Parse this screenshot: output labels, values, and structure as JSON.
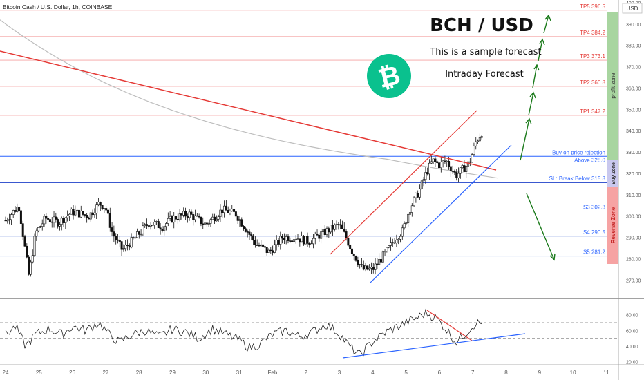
{
  "header": {
    "symbol_line": "Bitcoin Cash / U.S. Dollar, 1h, COINBASE",
    "currency_badge": "USD"
  },
  "forecast_text": {
    "title": "BCH / USD",
    "subtitle_1": "This is a sample forecast",
    "subtitle_2": "Intraday Forecast",
    "logo_icon": "bitcoin-cash-icon",
    "logo_color": "#0ac18e"
  },
  "colors": {
    "tp_line": "#f4a0a0",
    "tp_text": "#e53935",
    "support_line": "#9fb3e6",
    "support_text": "#2962ff",
    "buy_line": "#2962ff",
    "sl_line": "#1e40c8",
    "trendline_red": "#e53935",
    "trendline_blue": "#2962ff",
    "ma_gray": "#bdbdbd",
    "arrow_green": "#1b7a1b",
    "profit_zone": "#a8d5a0",
    "buy_zone": "#c9c8ee",
    "reverse_zone": "#f6a3a3",
    "candle_up": "#ffffff",
    "candle_down": "#111111"
  },
  "zones": {
    "profit": "profit zone",
    "buy": "Buy Zone",
    "reverse": "Reverse Zone"
  },
  "chart_data": {
    "type": "candlestick",
    "ylim": [
      262,
      400
    ],
    "y_ticks": [
      270,
      280,
      290,
      300,
      310,
      320,
      330,
      340,
      350,
      360,
      370,
      380,
      390,
      400
    ],
    "y_tick_labels": [
      "270.00",
      "280.00",
      "290.00",
      "300.00",
      "310.00",
      "320.00",
      "330.00",
      "340.00",
      "350.00",
      "360.00",
      "370.00",
      "380.00",
      "390.00",
      "400.00"
    ],
    "x_labels": [
      "24",
      "25",
      "26",
      "27",
      "28",
      "29",
      "30",
      "31",
      "Feb",
      "2",
      "3",
      "4",
      "5",
      "6",
      "7",
      "8",
      "9",
      "10",
      "11"
    ],
    "price_levels": [
      {
        "label": "TP5 396.5",
        "value": 396.5,
        "kind": "tp"
      },
      {
        "label": "TP4 384.2",
        "value": 384.2,
        "kind": "tp"
      },
      {
        "label": "TP3 373.1",
        "value": 373.1,
        "kind": "tp"
      },
      {
        "label": "TP2 360.8",
        "value": 360.8,
        "kind": "tp"
      },
      {
        "label": "TP1 347.2",
        "value": 347.2,
        "kind": "tp"
      },
      {
        "label": "Buy on price rejection",
        "value": 328.0,
        "kind": "buy_note"
      },
      {
        "label": "Above 328.0",
        "value": 328.0,
        "kind": "buy"
      },
      {
        "label": "SL: Break Below 315.8",
        "value": 315.8,
        "kind": "sl"
      },
      {
        "label": "S3 302.3",
        "value": 302.3,
        "kind": "support"
      },
      {
        "label": "S4 290.5",
        "value": 290.5,
        "kind": "support"
      },
      {
        "label": "S5 281.2",
        "value": 281.2,
        "kind": "support"
      }
    ],
    "price_path": [
      [
        24.0,
        298
      ],
      [
        24.4,
        305
      ],
      [
        24.7,
        272
      ],
      [
        24.9,
        292
      ],
      [
        25.2,
        299
      ],
      [
        25.6,
        297
      ],
      [
        26.0,
        302
      ],
      [
        26.5,
        300
      ],
      [
        26.8,
        306
      ],
      [
        27.0,
        304
      ],
      [
        27.2,
        292
      ],
      [
        27.5,
        284
      ],
      [
        27.9,
        290
      ],
      [
        28.3,
        297
      ],
      [
        28.7,
        295
      ],
      [
        29.0,
        299
      ],
      [
        29.5,
        301
      ],
      [
        30.0,
        296
      ],
      [
        30.5,
        303
      ],
      [
        30.9,
        301
      ],
      [
        31.2,
        294
      ],
      [
        31.5,
        287
      ],
      [
        31.9,
        283
      ],
      [
        32.3,
        290
      ],
      [
        32.7,
        290
      ],
      [
        33.1,
        288
      ],
      [
        33.5,
        292
      ],
      [
        34.0,
        296
      ],
      [
        34.2,
        290
      ],
      [
        34.4,
        283
      ],
      [
        34.7,
        275
      ],
      [
        35.0,
        275
      ],
      [
        35.4,
        283
      ],
      [
        35.7,
        290
      ],
      [
        35.9,
        293
      ],
      [
        36.1,
        303
      ],
      [
        36.4,
        312
      ],
      [
        36.6,
        320
      ],
      [
        36.8,
        326
      ],
      [
        37.0,
        324
      ],
      [
        37.2,
        326
      ],
      [
        37.5,
        319
      ],
      [
        37.7,
        322
      ],
      [
        37.9,
        325
      ],
      [
        38.1,
        335
      ],
      [
        38.3,
        340
      ]
    ],
    "rsi": {
      "ylim": [
        18,
        92
      ],
      "y_ticks": [
        20,
        40,
        60,
        80
      ],
      "y_tick_labels": [
        "20.00",
        "40.00",
        "60.00",
        "80.00"
      ],
      "levels": [
        30,
        50,
        70
      ],
      "path": [
        [
          24.0,
          55
        ],
        [
          24.3,
          65
        ],
        [
          24.6,
          40
        ],
        [
          24.9,
          55
        ],
        [
          25.3,
          62
        ],
        [
          25.7,
          55
        ],
        [
          26.0,
          65
        ],
        [
          26.4,
          60
        ],
        [
          26.8,
          70
        ],
        [
          27.1,
          55
        ],
        [
          27.4,
          45
        ],
        [
          27.8,
          55
        ],
        [
          28.2,
          60
        ],
        [
          28.6,
          52
        ],
        [
          29.0,
          62
        ],
        [
          29.4,
          58
        ],
        [
          29.8,
          50
        ],
        [
          30.2,
          62
        ],
        [
          30.6,
          55
        ],
        [
          31.0,
          48
        ],
        [
          31.3,
          38
        ],
        [
          31.6,
          42
        ],
        [
          32.0,
          55
        ],
        [
          32.4,
          60
        ],
        [
          32.8,
          52
        ],
        [
          33.2,
          58
        ],
        [
          33.6,
          68
        ],
        [
          34.0,
          56
        ],
        [
          34.3,
          40
        ],
        [
          34.6,
          28
        ],
        [
          35.0,
          46
        ],
        [
          35.4,
          58
        ],
        [
          35.8,
          66
        ],
        [
          36.2,
          74
        ],
        [
          36.6,
          82
        ],
        [
          36.9,
          76
        ],
        [
          37.2,
          62
        ],
        [
          37.5,
          45
        ],
        [
          37.8,
          57
        ],
        [
          38.1,
          70
        ],
        [
          38.3,
          68
        ]
      ]
    }
  }
}
